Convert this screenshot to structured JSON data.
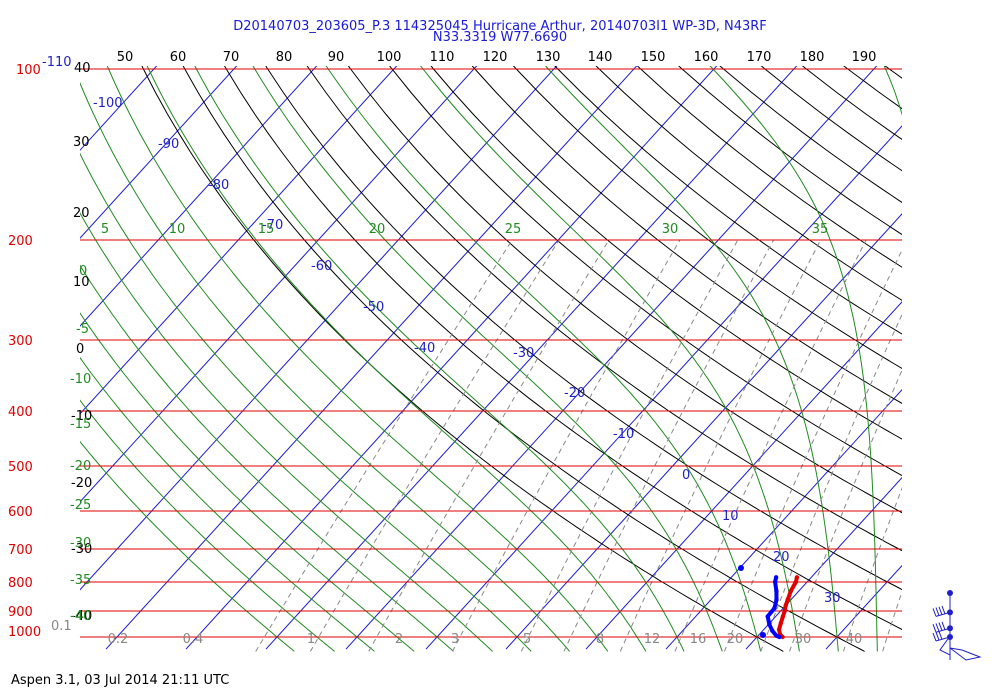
{
  "header": {
    "line1": "D20140703_203605_P.3 114325045 Hurricane Arthur, 20140703I1 WP-3D, N43RF",
    "line2": "N33.3319 W77.6690"
  },
  "footer": "Aspen 3.1, 03 Jul 2014  21:11 UTC",
  "colors": {
    "isobar": "#e00000",
    "isotherm": "#1a1ad8",
    "dry_adiabat": "#000000",
    "moist_adiabat": "#218a21",
    "mixing_ratio": "#888888",
    "temperature_trace": "#e00000",
    "dewpoint_trace": "#0000ff"
  },
  "chart_data": {
    "type": "line",
    "title": "D20140703_203605_P.3 114325045 Hurricane Arthur, 20140703I1 WP-3D, N43RF",
    "subtitle": "N33.3319 W77.6690",
    "pressure_levels": [
      "100",
      "200",
      "300",
      "400",
      "500",
      "600",
      "700",
      "800",
      "900",
      "1000"
    ],
    "pressure_extra_label": "-110",
    "theta_labels": [
      "50",
      "60",
      "70",
      "80",
      "90",
      "100",
      "110",
      "120",
      "130",
      "140",
      "150",
      "160",
      "170",
      "180",
      "190"
    ],
    "left_temperature_labels": [
      "40",
      "30",
      "20",
      "10",
      "0",
      "-10",
      "-20",
      "-30",
      "-40"
    ],
    "isotherm_labels": [
      "-100",
      "-90",
      "-80",
      "-70",
      "-60",
      "-50",
      "-40",
      "-30",
      "-20",
      "-10",
      "0",
      "10",
      "20",
      "30"
    ],
    "moist_top_labels": [
      "5",
      "10",
      "15",
      "20",
      "25",
      "30",
      "35"
    ],
    "moist_left_labels": [
      "0",
      "-5",
      "-10",
      "-15",
      "-20",
      "-25",
      "-30",
      "-35",
      "-40"
    ],
    "mixing_ratio_labels": [
      "0.1",
      "0.2",
      "0.4",
      "1",
      "2",
      "3",
      "5",
      "8",
      "12",
      "16",
      "20",
      "30",
      "40"
    ],
    "series": [
      {
        "name": "temperature",
        "points": [
          {
            "p": 785,
            "t": 18.2
          },
          {
            "p": 800,
            "t": 18.6
          },
          {
            "p": 830,
            "t": 19.0
          },
          {
            "p": 860,
            "t": 19.6
          },
          {
            "p": 880,
            "t": 20.0
          },
          {
            "p": 900,
            "t": 20.5
          },
          {
            "p": 920,
            "t": 20.9
          },
          {
            "p": 945,
            "t": 21.4
          },
          {
            "p": 970,
            "t": 21.9
          },
          {
            "p": 990,
            "t": 22.6
          },
          {
            "p": 1000,
            "t": 23.2
          }
        ]
      },
      {
        "name": "dewpoint",
        "points": [
          {
            "p": 785,
            "t": 15.6
          },
          {
            "p": 800,
            "t": 16.0
          },
          {
            "p": 830,
            "t": 17.2
          },
          {
            "p": 860,
            "t": 18.2
          },
          {
            "p": 890,
            "t": 18.9
          },
          {
            "p": 920,
            "t": 19.0
          },
          {
            "p": 950,
            "t": 20.1
          },
          {
            "p": 975,
            "t": 21.2
          },
          {
            "p": 995,
            "t": 22.3
          },
          {
            "p": 1000,
            "t": 22.8
          }
        ]
      }
    ],
    "wind_barbs": [
      {
        "p": 790,
        "direction": "northwest",
        "speed_kt": 0
      },
      {
        "p": 905,
        "direction": "west",
        "speed_kt": 35
      },
      {
        "p": 965,
        "direction": "west",
        "speed_kt": 40
      },
      {
        "p": 1000,
        "direction": "southwest",
        "speed_kt": 25
      }
    ],
    "ylim": [
      100,
      1050
    ],
    "xlim_temperature_at_1000": [
      -40,
      40
    ],
    "grid": true
  }
}
